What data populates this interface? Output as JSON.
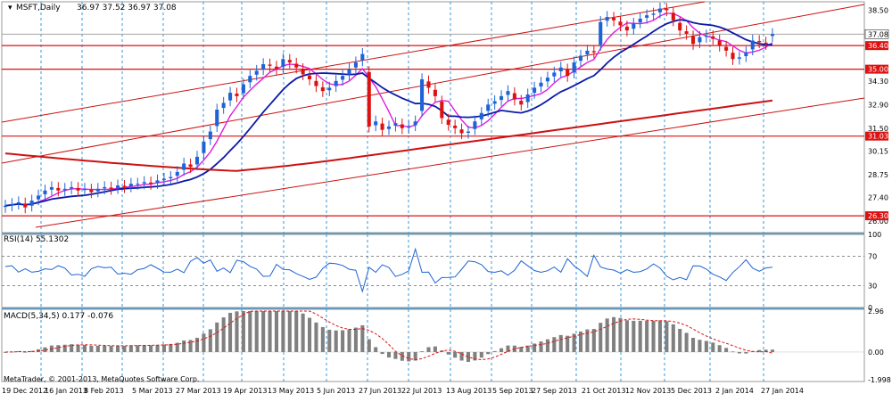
{
  "header": {
    "title": "MSFT,Daily",
    "ohlc": "36.97 37.52 36.97 37.08"
  },
  "rsi_label": "RSI(14) 55.1302",
  "macd_label": "MACD(5,34,5) 0.177 -0.076",
  "copyright": "MetaTrader, © 2001-2013, MetaQuotes Software Corp.",
  "x_labels": [
    "19 Dec 2012",
    "16 Jan 2013",
    "8 Feb 2013",
    "5 Mar 2013",
    "27 Mar 2013",
    "19 Apr 2013",
    "13 May 2013",
    "5 Jun 2013",
    "27 Jun 2013",
    "22 Jul 2013",
    "13 Aug 2013",
    "5 Sep 2013",
    "27 Sep 2013",
    "21 Oct 2013",
    "12 Nov 2013",
    "5 Dec 2013",
    "2 Jan 2014",
    "27 Jan 2014"
  ],
  "price_ticks": [
    "38.50",
    "37.08",
    "36.40",
    "35.00",
    "34.30",
    "32.90",
    "31.50",
    "30.15",
    "28.75",
    "27.40",
    "26.00"
  ],
  "rsi_ticks": [
    "100",
    "70",
    "30",
    "0"
  ],
  "macd_ticks": [
    "2.96",
    "0.00",
    "-1.998"
  ],
  "colors": {
    "up": "#1e63d6",
    "down": "#dd1111",
    "ma_fast": "#e01be0",
    "ma_mid": "#0a1aa8",
    "ma_slow": "#cc1111",
    "grid": "#3399dd",
    "level_line": "#dd1111",
    "rsi_line": "#1e63d6",
    "macd_hist": "#808080",
    "macd_signal": "#dd1111"
  },
  "chart_data": [
    {
      "type": "candlestick",
      "panel": "price",
      "symbol": "MSFT",
      "timeframe": "Daily",
      "last_bar": {
        "open": 36.97,
        "high": 37.52,
        "low": 36.97,
        "close": 37.08
      },
      "ylim": [
        25.3,
        39.0
      ],
      "close": [
        26.9,
        27.0,
        27.1,
        26.8,
        27.2,
        27.5,
        27.8,
        28.0,
        27.8,
        27.9,
        28.0,
        27.8,
        27.9,
        27.7,
        27.9,
        28.0,
        27.9,
        28.1,
        28.0,
        28.2,
        28.2,
        28.3,
        28.2,
        28.4,
        28.5,
        28.6,
        28.9,
        29.4,
        29.2,
        29.8,
        30.7,
        31.3,
        32.6,
        33.0,
        33.6,
        33.4,
        34.1,
        34.6,
        34.9,
        35.3,
        35.2,
        35.0,
        35.6,
        35.4,
        35.1,
        34.7,
        34.4,
        34.0,
        33.7,
        33.9,
        34.3,
        34.6,
        35.0,
        35.4,
        35.9,
        31.6,
        31.9,
        31.4,
        31.6,
        31.8,
        31.5,
        31.6,
        31.9,
        34.4,
        33.9,
        33.4,
        32.1,
        31.7,
        31.5,
        31.2,
        31.3,
        31.9,
        32.4,
        32.9,
        33.1,
        33.4,
        33.7,
        33.2,
        32.9,
        33.5,
        33.9,
        34.2,
        34.5,
        34.8,
        35.1,
        34.6,
        35.4,
        35.8,
        36.1,
        36.0,
        37.8,
        38.1,
        37.9,
        37.6,
        37.3,
        37.7,
        38.0,
        38.2,
        38.3,
        38.6,
        38.5,
        37.9,
        37.3,
        37.1,
        36.5,
        36.9,
        37.0,
        36.8,
        36.4,
        36.1,
        35.6,
        35.7,
        36.0,
        36.7,
        36.6,
        36.5,
        37.08
      ],
      "ma_periods_unlabeled": true,
      "horizontal_levels": [
        "36.40",
        "35.00",
        "31.03",
        "26.30"
      ],
      "channel_lines": 4
    },
    {
      "type": "line",
      "panel": "indicator",
      "title": "RSI(14) 55.1302",
      "ylim": [
        0,
        100
      ],
      "levels": [
        30,
        70
      ],
      "current": 55.1302
    },
    {
      "type": "bar",
      "panel": "indicator",
      "title": "MACD(5,34,5) 0.177 -0.076",
      "ylim": [
        -1.998,
        2.96
      ],
      "macd": 0.177,
      "signal": -0.076
    }
  ]
}
